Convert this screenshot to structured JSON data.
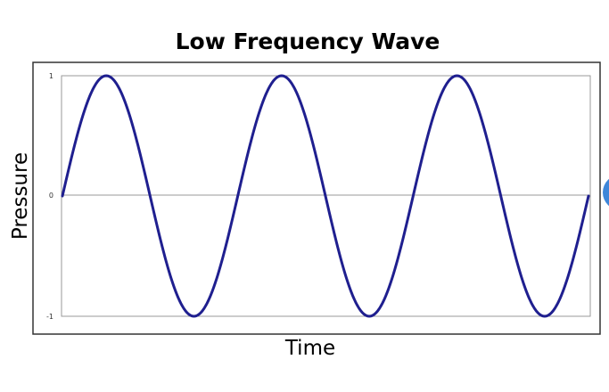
{
  "chart_data": {
    "type": "line",
    "title": "Low Frequency Wave",
    "xlabel": "Time",
    "ylabel": "Pressure",
    "ylim": [
      -1,
      1
    ],
    "y_ticks": [
      1,
      0,
      -1
    ],
    "y_tick_labels": [
      "1",
      "0",
      "-1"
    ],
    "cycles": 3,
    "amplitude": 1,
    "function": "sine",
    "grid": false,
    "series": [
      {
        "color": "#1f1f8f"
      }
    ]
  },
  "colors": {
    "plot_border": "#999999",
    "zero_line": "#999999",
    "frame": "#333333",
    "accent_dot": "#3d86d9"
  }
}
